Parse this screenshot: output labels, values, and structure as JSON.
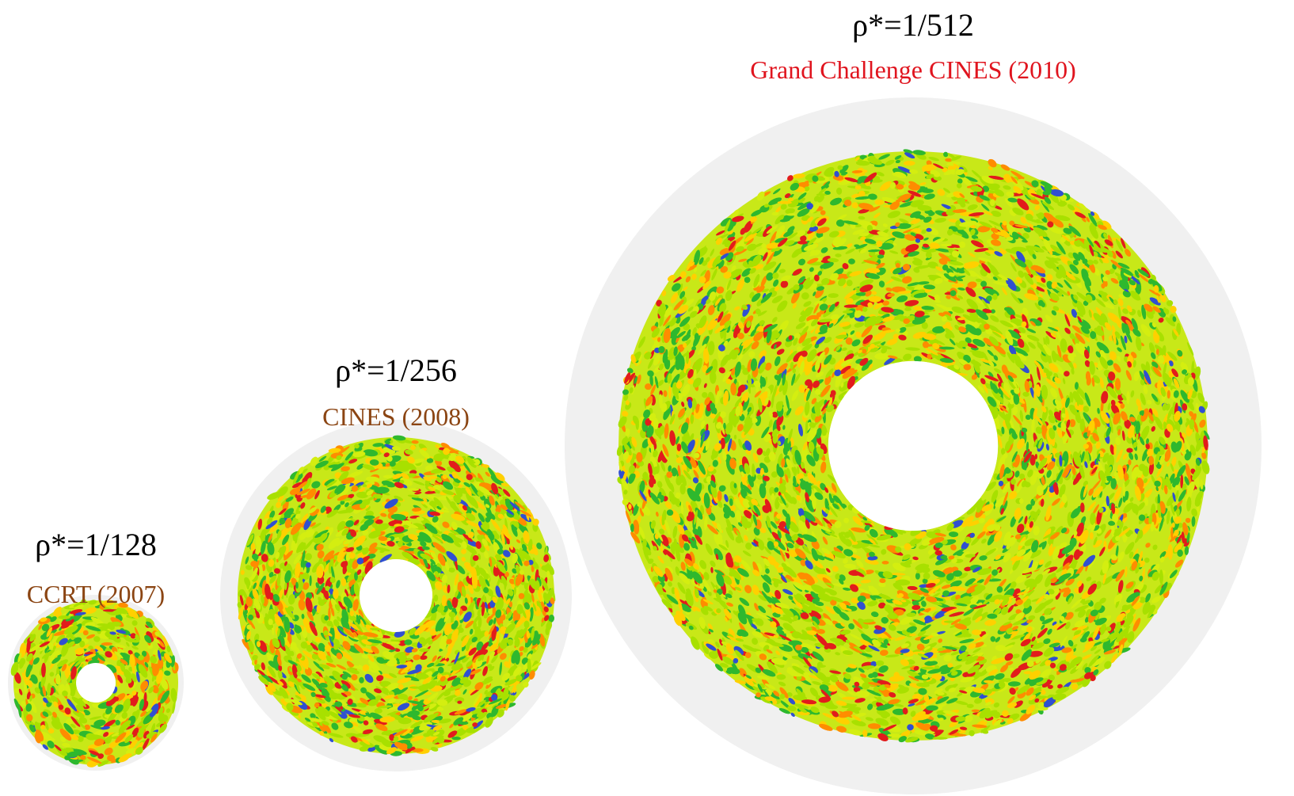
{
  "panels": [
    {
      "id": "small",
      "rho_label": "ρ*=1/128",
      "facility_label": "CCRT (2007)",
      "facility_color": "#8b4513",
      "hole_ratio": 0.24
    },
    {
      "id": "medium",
      "rho_label": "ρ*=1/256",
      "facility_label": "CINES (2008)",
      "facility_color": "#8b4513",
      "hole_ratio": 0.23
    },
    {
      "id": "large",
      "rho_label": "ρ*=1/512",
      "facility_label": "Grand Challenge  CINES (2010)",
      "facility_color": "#e0141e",
      "hole_ratio": 0.24
    }
  ],
  "colors": {
    "background": "#ffffff",
    "outer_disk": "#f0f0f0",
    "turbulence_palette": [
      "#a8e000",
      "#d4ee10",
      "#2eb82e",
      "#ffd000",
      "#ff8c00",
      "#e21c1c",
      "#3050d0",
      "#ffffff"
    ]
  }
}
